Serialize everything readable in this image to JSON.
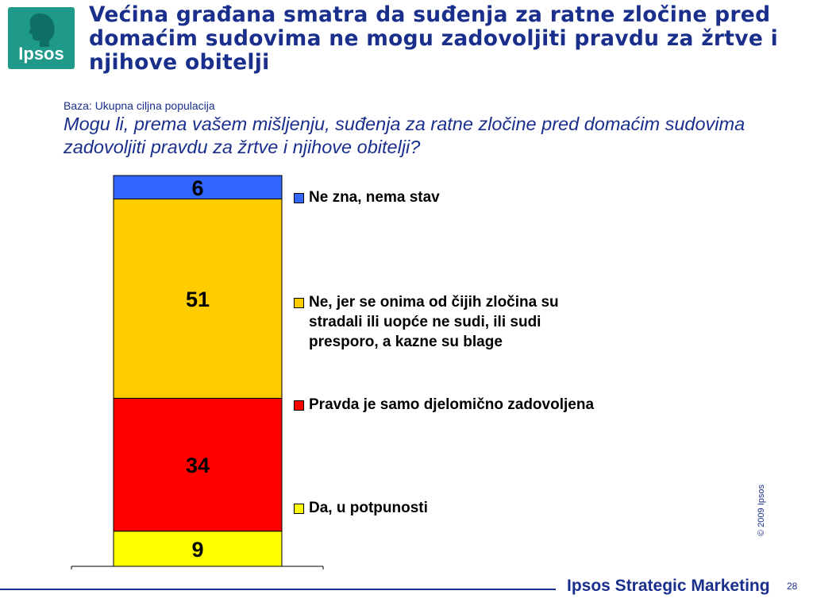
{
  "logo": {
    "text": "Ipsos"
  },
  "title": "Većina građana smatra da suđenja za ratne zločine pred domaćim sudovima ne mogu zadovoljiti pravdu za žrtve i njihove obitelji",
  "base_note": "Baza: Ukupna ciljna populacija",
  "question": "Mogu li, prema vašem mišljenju, suđenja za ratne zločine pred domaćim sudovima zadovoljiti pravdu za žrtve i njihove obitelji?",
  "chart_data": {
    "type": "bar",
    "stacked": true,
    "categories": [
      ""
    ],
    "series": [
      {
        "name": "Da, u potpunosti",
        "values": [
          9
        ],
        "color": "#ffff00"
      },
      {
        "name": "Pravda je samo djelomično zadovoljena",
        "values": [
          34
        ],
        "color": "#ff0000"
      },
      {
        "name": "Ne, jer se onima od čijih zločina su stradali ili uopće ne sudi, ili sudi presporo, a kazne su blage",
        "values": [
          51
        ],
        "color": "#ffcc00"
      },
      {
        "name": "Ne zna, nema stav",
        "values": [
          6
        ],
        "color": "#3366ff"
      }
    ],
    "legend_position": "right",
    "ylim": [
      0,
      100
    ]
  },
  "copyright": "© 2009 Ipsos",
  "footer": {
    "brand": "Ipsos Strategic Marketing",
    "page": "28"
  }
}
